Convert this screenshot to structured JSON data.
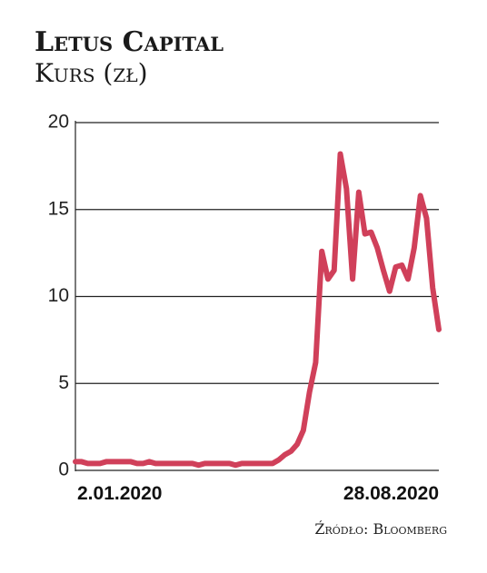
{
  "chart_data": {
    "type": "line",
    "title": "Letus Capital",
    "subtitle": "Kurs (zł)",
    "source": "Źródło: Bloomberg",
    "categories": [
      "2.01.2020",
      null,
      null,
      null,
      null,
      null,
      null,
      null,
      null,
      null,
      null,
      null,
      null,
      null,
      null,
      null,
      null,
      null,
      null,
      null,
      null,
      null,
      null,
      null,
      null,
      null,
      null,
      null,
      null,
      null,
      null,
      null,
      null,
      null,
      null,
      null,
      null,
      null,
      null,
      null,
      null,
      null,
      null,
      null,
      null,
      null,
      null,
      null,
      null,
      null,
      null,
      null,
      null,
      null,
      null,
      null,
      null,
      null,
      null,
      "28.08.2020"
    ],
    "values": [
      0.5,
      0.5,
      0.4,
      0.4,
      0.4,
      0.5,
      0.5,
      0.5,
      0.5,
      0.5,
      0.4,
      0.4,
      0.5,
      0.4,
      0.4,
      0.4,
      0.4,
      0.4,
      0.4,
      0.4,
      0.3,
      0.4,
      0.4,
      0.4,
      0.4,
      0.4,
      0.3,
      0.4,
      0.4,
      0.4,
      0.4,
      0.4,
      0.4,
      0.6,
      0.9,
      1.1,
      1.5,
      2.3,
      4.5,
      6.2,
      12.6,
      11,
      11.5,
      18.2,
      16.2,
      11,
      16,
      13.6,
      13.7,
      12.8,
      11.5,
      10.3,
      11.7,
      11.8,
      11,
      12.8,
      15.8,
      14.5,
      10.5,
      8.1
    ],
    "color": "#d0405a",
    "ylim": [
      0,
      20
    ],
    "yticks": [
      0,
      5,
      10,
      15,
      20
    ],
    "grid": true
  }
}
